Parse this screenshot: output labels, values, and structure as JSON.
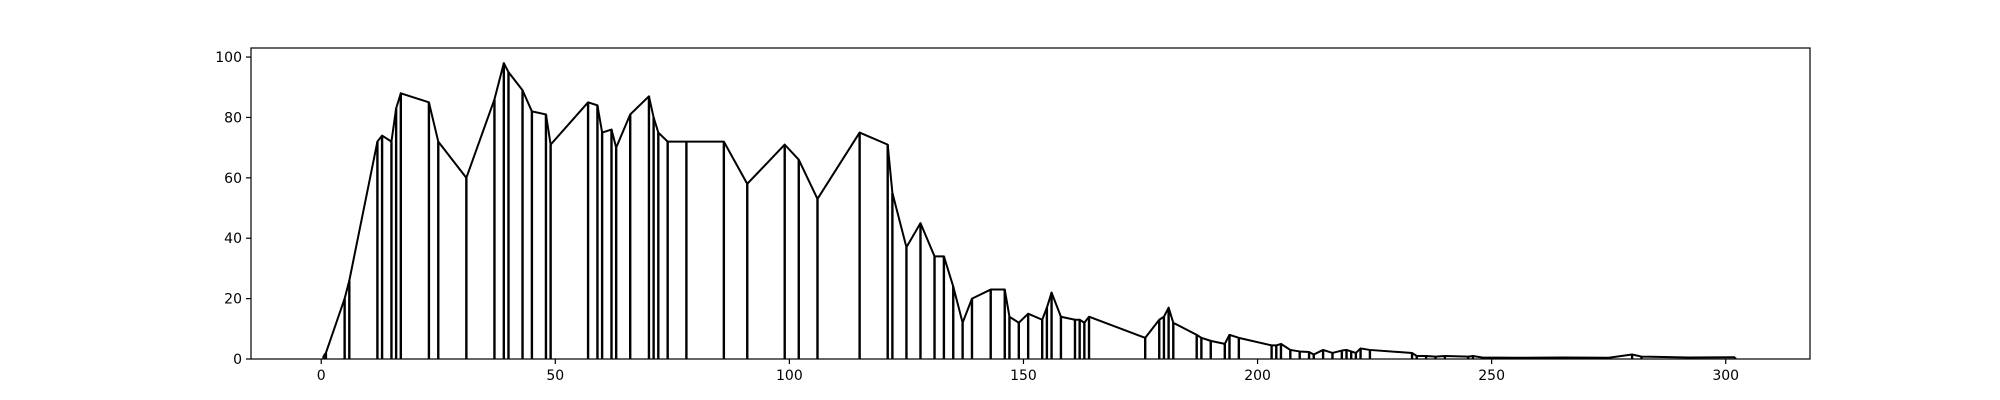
{
  "chart_data": {
    "type": "line",
    "title": "",
    "xlabel": "",
    "ylabel": "",
    "xlim": [
      -15,
      318
    ],
    "ylim": [
      0,
      103
    ],
    "xticks": [
      0,
      50,
      100,
      150,
      200,
      250,
      300
    ],
    "yticks": [
      0,
      20,
      40,
      60,
      80,
      100
    ],
    "grid": false,
    "legend": "none",
    "line_color": "#000000",
    "series": [
      {
        "x": [
          0.5,
          1,
          5,
          6,
          12,
          13,
          15,
          16,
          17,
          23,
          25,
          31,
          37,
          39,
          40,
          43,
          45,
          48,
          49,
          57,
          59,
          60,
          62,
          63,
          66,
          70,
          71,
          72,
          74,
          78,
          86,
          91,
          99,
          102,
          106,
          115,
          121,
          122,
          125,
          128,
          131,
          133,
          135,
          137,
          139,
          143,
          146,
          147,
          149,
          151,
          154,
          155,
          156,
          158,
          161,
          162,
          163,
          164,
          176,
          179,
          180,
          181,
          182,
          187,
          188,
          190,
          193,
          194,
          196,
          203,
          204,
          205,
          207,
          209,
          211,
          212,
          214,
          216,
          218,
          219,
          220,
          221,
          222,
          224,
          233,
          234,
          236,
          238,
          240,
          245,
          246,
          248,
          255,
          265,
          275,
          280,
          282,
          292,
          302
        ],
        "y": [
          1,
          2,
          20,
          26,
          72,
          74,
          72,
          83,
          88,
          85,
          72,
          60,
          86,
          98,
          95,
          89,
          82,
          81,
          71,
          85,
          84,
          75,
          76,
          70,
          81,
          87,
          80,
          75,
          72,
          72,
          72,
          58,
          71,
          66,
          53,
          75,
          71,
          55,
          37,
          45,
          34,
          34,
          24,
          12,
          20,
          23,
          23,
          14,
          12,
          15,
          13,
          17,
          22,
          14,
          13,
          13,
          12,
          14,
          7,
          13,
          14,
          17,
          12,
          8,
          7,
          6,
          5,
          8,
          7,
          4.5,
          4.5,
          5,
          3,
          2.5,
          2.3,
          1.5,
          3,
          2,
          2.8,
          3,
          2.5,
          2,
          3.5,
          3,
          2,
          1,
          1,
          0.8,
          1,
          0.8,
          1,
          0.5,
          0.4,
          0.5,
          0.4,
          1.5,
          0.8,
          0.5,
          0.6
        ]
      }
    ]
  }
}
